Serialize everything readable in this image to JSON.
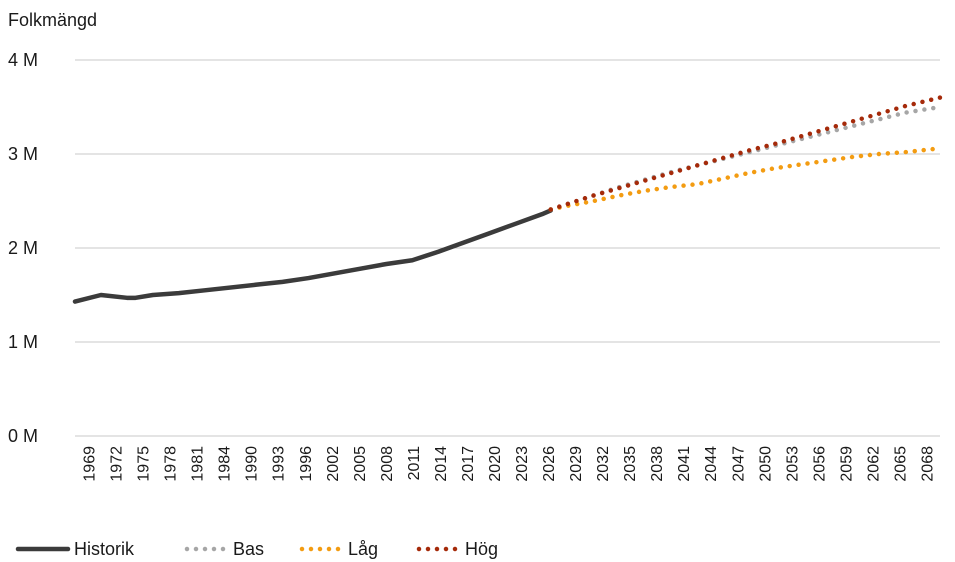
{
  "chart_data": {
    "type": "line",
    "ylabel": "Folkmängd",
    "ylim": [
      0,
      4000000
    ],
    "yticks": [
      0,
      1000000,
      2000000,
      3000000,
      4000000
    ],
    "ytick_labels": [
      "0 M",
      "1 M",
      "2 M",
      "3 M",
      "4 M"
    ],
    "xlim": [
      1969,
      2069
    ],
    "xticks": [
      "1969",
      "1972",
      "1975",
      "1978",
      "1981",
      "1984",
      "1990",
      "1993",
      "1996",
      "2002",
      "2005",
      "2008",
      "2011",
      "2014",
      "2017",
      "2020",
      "2023",
      "2026",
      "2029",
      "2032",
      "2035",
      "2038",
      "2041",
      "2044",
      "2047",
      "2050",
      "2053",
      "2056",
      "2059",
      "2062",
      "2065",
      "2068"
    ],
    "grid": true,
    "legend_position": "bottom-left",
    "series": [
      {
        "name": "Historik",
        "style": "solid",
        "color": "#3b3b3b",
        "points": [
          [
            1969,
            1430000
          ],
          [
            1972,
            1500000
          ],
          [
            1975,
            1470000
          ],
          [
            1976,
            1470000
          ],
          [
            1978,
            1500000
          ],
          [
            1981,
            1520000
          ],
          [
            1984,
            1550000
          ],
          [
            1990,
            1610000
          ],
          [
            1993,
            1640000
          ],
          [
            1996,
            1680000
          ],
          [
            2002,
            1780000
          ],
          [
            2005,
            1830000
          ],
          [
            2008,
            1870000
          ],
          [
            2011,
            1960000
          ],
          [
            2014,
            2060000
          ],
          [
            2017,
            2160000
          ],
          [
            2020,
            2260000
          ],
          [
            2023,
            2360000
          ],
          [
            2024,
            2400000
          ]
        ]
      },
      {
        "name": "Bas",
        "style": "dotted",
        "color": "#a6a6a6",
        "points": [
          [
            2024,
            2410000
          ],
          [
            2026,
            2470000
          ],
          [
            2029,
            2560000
          ],
          [
            2032,
            2650000
          ],
          [
            2035,
            2730000
          ],
          [
            2038,
            2810000
          ],
          [
            2041,
            2880000
          ],
          [
            2044,
            2950000
          ],
          [
            2047,
            3020000
          ],
          [
            2050,
            3090000
          ],
          [
            2053,
            3160000
          ],
          [
            2056,
            3230000
          ],
          [
            2059,
            3300000
          ],
          [
            2062,
            3370000
          ],
          [
            2065,
            3440000
          ],
          [
            2069,
            3500000
          ]
        ]
      },
      {
        "name": "Låg",
        "style": "dotted",
        "color": "#f39c12",
        "points": [
          [
            2024,
            2410000
          ],
          [
            2026,
            2450000
          ],
          [
            2029,
            2500000
          ],
          [
            2032,
            2560000
          ],
          [
            2035,
            2610000
          ],
          [
            2038,
            2650000
          ],
          [
            2041,
            2680000
          ],
          [
            2044,
            2740000
          ],
          [
            2047,
            2800000
          ],
          [
            2050,
            2850000
          ],
          [
            2053,
            2890000
          ],
          [
            2056,
            2930000
          ],
          [
            2059,
            2970000
          ],
          [
            2062,
            3000000
          ],
          [
            2065,
            3020000
          ],
          [
            2069,
            3060000
          ]
        ]
      },
      {
        "name": "Hög",
        "style": "dotted",
        "color": "#a52a0a",
        "points": [
          [
            2024,
            2410000
          ],
          [
            2026,
            2470000
          ],
          [
            2029,
            2560000
          ],
          [
            2032,
            2640000
          ],
          [
            2035,
            2720000
          ],
          [
            2038,
            2800000
          ],
          [
            2041,
            2880000
          ],
          [
            2044,
            2960000
          ],
          [
            2047,
            3040000
          ],
          [
            2050,
            3110000
          ],
          [
            2053,
            3190000
          ],
          [
            2056,
            3270000
          ],
          [
            2059,
            3350000
          ],
          [
            2062,
            3430000
          ],
          [
            2065,
            3510000
          ],
          [
            2069,
            3600000
          ]
        ]
      }
    ]
  }
}
